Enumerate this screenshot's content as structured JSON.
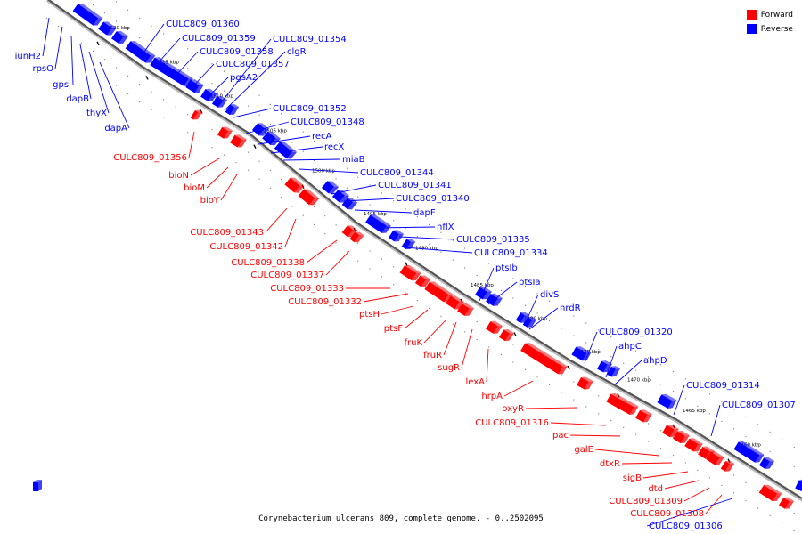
{
  "caption": "Corynebacterium ulcerans 809, complete genome. - 0..2502095",
  "legend": [
    {
      "label": "Forward",
      "color": "#ff0000"
    },
    {
      "label": "Reverse",
      "color": "#0000ff"
    }
  ],
  "colors": {
    "forward": "#ff0000",
    "reverse": "#0000ff",
    "backbone": "#555555"
  },
  "ticks": [
    "1520 kbp",
    "1515 kbp",
    "1510 kbp",
    "1505 kbp",
    "1500 kbp",
    "1495 kbp",
    "1490 kbp",
    "1485 kbp",
    "1480 kbp",
    "1475 kbp",
    "1470 kbp",
    "1465 kbp",
    "1460 kbp"
  ],
  "reverse_labels": [
    "iunH2",
    "rpsO",
    "gpsI",
    "dapB",
    "thyX",
    "dapA",
    "CULC809_01360",
    "CULC809_01359",
    "CULC809_01358",
    "CULC809_01357",
    "pgsA2",
    "CULC809_01354",
    "clgR",
    "CULC809_01352",
    "CULC809_01348",
    "recA",
    "recX",
    "miaB",
    "CULC809_01344",
    "CULC809_01341",
    "CULC809_01340",
    "dapF",
    "hflX",
    "CULC809_01335",
    "CULC809_01334",
    "ptsIb",
    "ptsIa",
    "divS",
    "nrdR",
    "CULC809_01320",
    "ahpC",
    "ahpD",
    "CULC809_01314",
    "CULC809_01307",
    "CULC809_01306"
  ],
  "forward_labels": [
    "CULC809_01356",
    "bioN",
    "bioM",
    "bioY",
    "CULC809_01343",
    "CULC809_01342",
    "CULC809_01338",
    "CULC809_01337",
    "CULC809_01333",
    "CULC809_01332",
    "ptsH",
    "ptsF",
    "fruK",
    "fruR",
    "sugR",
    "lexA",
    "hrpA",
    "oxyR",
    "CULC809_01316",
    "pac",
    "galE",
    "dtxR",
    "sigB",
    "dtd",
    "CULC809_01309",
    "CULC809_01308"
  ]
}
